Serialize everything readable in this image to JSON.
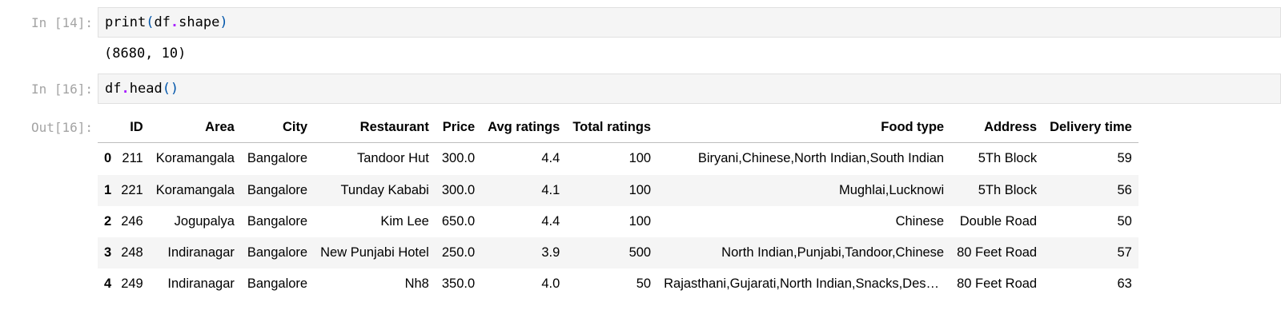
{
  "cells": [
    {
      "prompt": "In [14]:",
      "code": {
        "fn": "print",
        "open": "(",
        "obj": "df",
        "dot": ".",
        "attr": "shape",
        "close": ")"
      },
      "output": "(8680, 10)"
    },
    {
      "prompt": "In [16]:",
      "code": {
        "obj": "df",
        "dot": ".",
        "attr": "head",
        "call": "()"
      },
      "out_prompt": "Out[16]:"
    }
  ],
  "dataframe": {
    "index_header": "",
    "columns": [
      "ID",
      "Area",
      "City",
      "Restaurant",
      "Price",
      "Avg ratings",
      "Total ratings",
      "Food type",
      "Address",
      "Delivery time"
    ],
    "rows": [
      {
        "index": "0",
        "values": [
          "211",
          "Koramangala",
          "Bangalore",
          "Tandoor Hut",
          "300.0",
          "4.4",
          "100",
          "Biryani,Chinese,North Indian,South Indian",
          "5Th Block",
          "59"
        ]
      },
      {
        "index": "1",
        "values": [
          "221",
          "Koramangala",
          "Bangalore",
          "Tunday Kababi",
          "300.0",
          "4.1",
          "100",
          "Mughlai,Lucknowi",
          "5Th Block",
          "56"
        ]
      },
      {
        "index": "2",
        "values": [
          "246",
          "Jogupalya",
          "Bangalore",
          "Kim Lee",
          "650.0",
          "4.4",
          "100",
          "Chinese",
          "Double Road",
          "50"
        ]
      },
      {
        "index": "3",
        "values": [
          "248",
          "Indiranagar",
          "Bangalore",
          "New Punjabi Hotel",
          "250.0",
          "3.9",
          "500",
          "North Indian,Punjabi,Tandoor,Chinese",
          "80 Feet Road",
          "57"
        ]
      },
      {
        "index": "4",
        "values": [
          "249",
          "Indiranagar",
          "Bangalore",
          "Nh8",
          "350.0",
          "4.0",
          "50",
          "Rajasthani,Gujarati,North Indian,Snacks,Desser...",
          "80 Feet Road",
          "63"
        ]
      }
    ]
  }
}
